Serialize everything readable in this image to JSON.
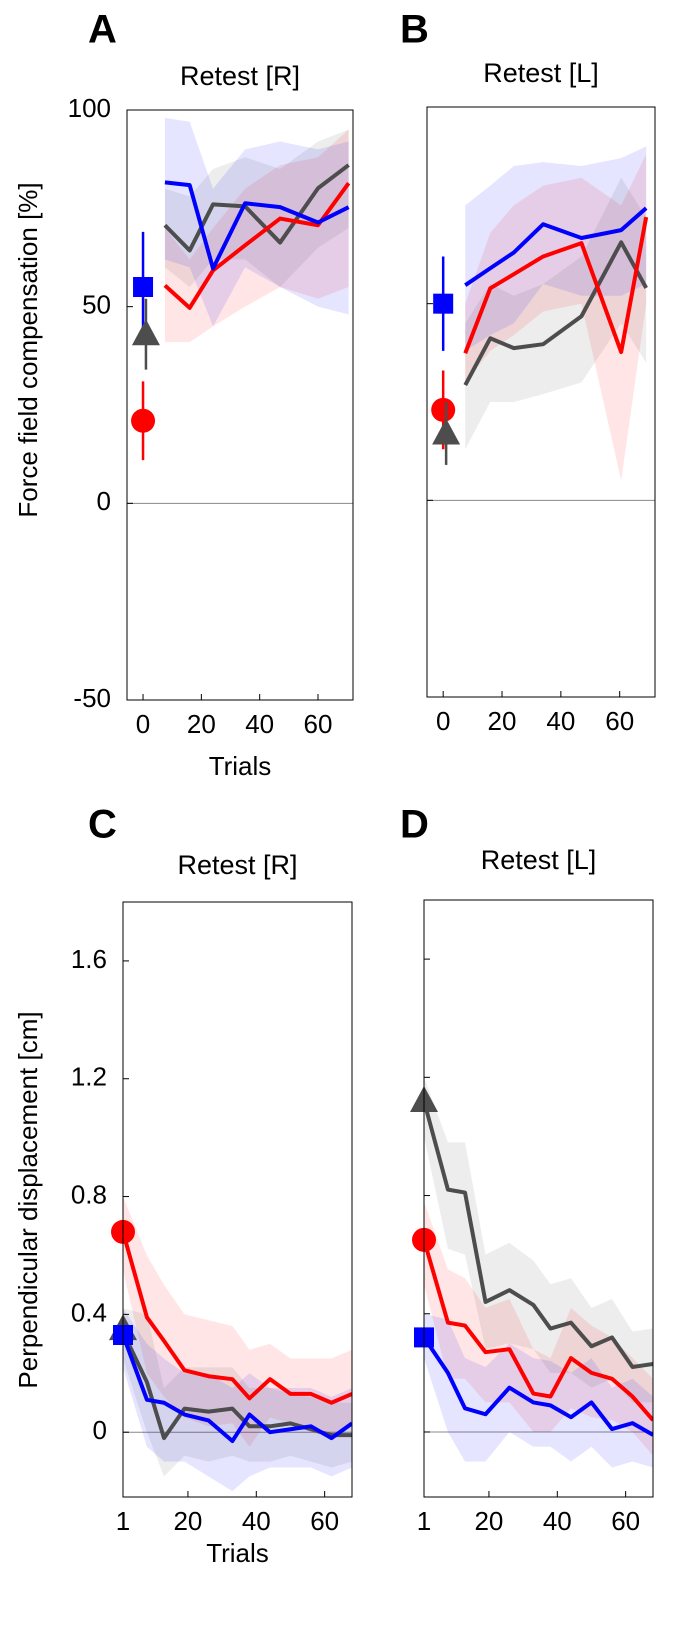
{
  "chart_data": [
    {
      "type": "line",
      "panel": "A",
      "title": "Retest [R]",
      "ylabel": "Force field compensation [%]",
      "xlabel": "Trials",
      "xlim": [
        -5.5,
        72
      ],
      "ylim": [
        -50,
        100
      ],
      "xticks": [
        0,
        20,
        40,
        60
      ],
      "yticks": [
        -50,
        0,
        50,
        100
      ],
      "ytick_labels": true,
      "zero_line": true,
      "series": [
        {
          "color": "#4d4d4d",
          "x": [
            7.5,
            16,
            24,
            35,
            47,
            60,
            70.5
          ],
          "values": [
            70.7,
            64.3,
            76,
            75.5,
            66.3,
            80.1,
            86
          ],
          "band_lower": [
            60,
            55,
            62,
            62,
            55,
            65,
            70
          ],
          "band_upper": [
            80,
            78,
            85,
            88,
            85,
            92,
            95
          ]
        },
        {
          "color": "#ff0000",
          "x": [
            7.5,
            16,
            24,
            35,
            47,
            60,
            70.5
          ],
          "values": [
            55.4,
            49.7,
            59.2,
            65.6,
            72.4,
            70.7,
            81.4
          ],
          "band_lower": [
            41,
            41,
            45,
            50,
            55,
            52,
            55
          ],
          "band_upper": [
            70,
            62,
            70,
            80,
            86,
            88,
            95
          ]
        },
        {
          "color": "#0000ff",
          "x": [
            7.5,
            16,
            24,
            35,
            47,
            60,
            70.5
          ],
          "values": [
            81.6,
            80.9,
            59.7,
            76.3,
            75.3,
            71.4,
            75.3
          ],
          "band_lower": [
            62,
            60,
            45,
            60,
            55,
            50,
            48
          ],
          "band_upper": [
            98,
            97,
            80,
            90,
            92,
            90,
            92
          ]
        }
      ],
      "markers": [
        {
          "color": "#0000ff",
          "shape": "square",
          "x": 0,
          "value": 55,
          "error": 14
        },
        {
          "color": "#4d4d4d",
          "shape": "triangle",
          "x": 1,
          "value": 43,
          "error": 9
        },
        {
          "color": "#ff0000",
          "shape": "circle",
          "x": 0,
          "value": 21,
          "error": 10
        }
      ]
    },
    {
      "type": "line",
      "panel": "B",
      "title": "Retest [L]",
      "xlim": [
        -5.5,
        72
      ],
      "ylim": [
        -50,
        100
      ],
      "xticks": [
        0,
        20,
        40,
        60
      ],
      "yticks": [
        -50,
        0,
        50,
        100
      ],
      "ytick_labels": false,
      "zero_line": true,
      "series": [
        {
          "color": "#4d4d4d",
          "x": [
            7.5,
            16,
            24,
            34,
            47,
            60.5,
            69
          ],
          "values": [
            29.3,
            41.2,
            38.7,
            39.7,
            46.8,
            65.6,
            54
          ],
          "band_lower": [
            13,
            25,
            25,
            27,
            30,
            45,
            35
          ],
          "band_upper": [
            45,
            55,
            52,
            55,
            62,
            82,
            72
          ]
        },
        {
          "color": "#ff0000",
          "x": [
            7.5,
            16,
            24,
            34,
            47,
            60.5,
            69
          ],
          "values": [
            37.4,
            53.9,
            57.5,
            62,
            65.4,
            37.7,
            72
          ],
          "band_lower": [
            30,
            38,
            42,
            48,
            50,
            5,
            50
          ],
          "band_upper": [
            50,
            68,
            75,
            80,
            82,
            75,
            88
          ]
        },
        {
          "color": "#0000ff",
          "x": [
            7.5,
            16,
            24,
            34,
            47,
            60.5,
            69
          ],
          "values": [
            54.7,
            59,
            63,
            70.2,
            66.7,
            68.7,
            74.3
          ],
          "band_lower": [
            38,
            42,
            45,
            55,
            52,
            52,
            55
          ],
          "band_upper": [
            75,
            80,
            85,
            86,
            85,
            87,
            90
          ]
        }
      ],
      "markers": [
        {
          "color": "#0000ff",
          "shape": "square",
          "x": 0,
          "value": 50,
          "error": 12
        },
        {
          "color": "#ff0000",
          "shape": "circle",
          "x": 0,
          "value": 23,
          "error": 10
        },
        {
          "color": "#4d4d4d",
          "shape": "triangle",
          "x": 1,
          "value": 17,
          "error": 8
        }
      ]
    },
    {
      "type": "line",
      "panel": "C",
      "title": "Retest [R]",
      "ylabel": "Perpendicular displacement [cm]",
      "xlabel": "Trials",
      "xlim": [
        1,
        68
      ],
      "ylim": [
        -0.22,
        1.8
      ],
      "xticks": [
        1,
        20,
        40,
        60
      ],
      "yticks": [
        0,
        0.4,
        0.8,
        1.2,
        1.6
      ],
      "ytick_labels": true,
      "zero_line": true,
      "series": [
        {
          "color": "#ff0000",
          "x": [
            1,
            8,
            13,
            19,
            26,
            33,
            38,
            44,
            50,
            56,
            62,
            68
          ],
          "values": [
            0.68,
            0.39,
            0.31,
            0.21,
            0.19,
            0.18,
            0.115,
            0.18,
            0.13,
            0.13,
            0.1,
            0.13
          ],
          "band_lower": [
            0.55,
            0.2,
            0.12,
            0.05,
            0.02,
            0.03,
            -0.05,
            0.05,
            0.03,
            0.0,
            -0.02,
            0.02
          ],
          "band_upper": [
            0.8,
            0.6,
            0.5,
            0.4,
            0.38,
            0.36,
            0.28,
            0.3,
            0.25,
            0.25,
            0.25,
            0.28
          ]
        },
        {
          "color": "#4d4d4d",
          "x": [
            1,
            8,
            13,
            19,
            26,
            33,
            38,
            44,
            50,
            56,
            62,
            68
          ],
          "values": [
            0.34,
            0.17,
            -0.02,
            0.08,
            0.07,
            0.08,
            0.02,
            0.02,
            0.03,
            0.01,
            -0.01,
            -0.01
          ],
          "band_lower": [
            0.25,
            0.0,
            -0.15,
            -0.08,
            -0.1,
            -0.08,
            -0.1,
            -0.1,
            -0.08,
            -0.1,
            -0.12,
            -0.1
          ],
          "band_upper": [
            0.42,
            0.4,
            0.15,
            0.22,
            0.22,
            0.22,
            0.15,
            0.15,
            0.13,
            0.12,
            0.1,
            0.1
          ]
        },
        {
          "color": "#0000ff",
          "x": [
            1,
            8,
            13,
            19,
            26,
            33,
            38,
            44,
            50,
            56,
            62,
            68
          ],
          "values": [
            0.33,
            0.11,
            0.1,
            0.06,
            0.04,
            -0.03,
            0.06,
            0.0,
            0.01,
            0.02,
            -0.02,
            0.03
          ],
          "band_lower": [
            0.22,
            -0.05,
            -0.1,
            -0.1,
            -0.15,
            -0.2,
            -0.15,
            -0.12,
            -0.12,
            -0.12,
            -0.15,
            -0.12
          ],
          "band_upper": [
            0.42,
            0.3,
            0.25,
            0.2,
            0.2,
            0.15,
            0.2,
            0.15,
            0.15,
            0.15,
            0.12,
            0.15
          ]
        }
      ],
      "markers": [
        {
          "color": "#ff0000",
          "shape": "circle",
          "x": 1,
          "value": 0.68
        },
        {
          "color": "#4d4d4d",
          "shape": "triangle",
          "x": 1,
          "value": 0.35
        },
        {
          "color": "#0000ff",
          "shape": "square",
          "x": 1,
          "value": 0.33
        }
      ]
    },
    {
      "type": "line",
      "panel": "D",
      "title": "Retest [L]",
      "xlim": [
        1,
        68
      ],
      "ylim": [
        -0.22,
        1.8
      ],
      "xticks": [
        1,
        20,
        40,
        60
      ],
      "yticks": [
        0,
        0.4,
        0.8,
        1.2,
        1.6
      ],
      "ytick_labels": false,
      "zero_line": true,
      "series": [
        {
          "color": "#4d4d4d",
          "x": [
            1,
            8,
            13,
            19,
            26,
            33,
            38,
            44,
            50,
            56,
            62,
            68
          ],
          "values": [
            1.12,
            0.82,
            0.81,
            0.44,
            0.48,
            0.43,
            0.35,
            0.37,
            0.29,
            0.32,
            0.22,
            0.23
          ],
          "band_lower": [
            1.0,
            0.62,
            0.6,
            0.28,
            0.3,
            0.28,
            0.2,
            0.2,
            0.15,
            0.18,
            0.1,
            0.1
          ],
          "band_upper": [
            1.2,
            0.98,
            0.98,
            0.6,
            0.64,
            0.58,
            0.5,
            0.52,
            0.42,
            0.45,
            0.34,
            0.35
          ]
        },
        {
          "color": "#ff0000",
          "x": [
            1,
            8,
            13,
            19,
            26,
            33,
            38,
            44,
            50,
            56,
            62,
            68
          ],
          "values": [
            0.65,
            0.37,
            0.36,
            0.27,
            0.28,
            0.13,
            0.12,
            0.25,
            0.2,
            0.18,
            0.12,
            0.04
          ],
          "band_lower": [
            0.5,
            0.18,
            0.18,
            0.1,
            0.1,
            0.0,
            0.0,
            0.08,
            0.05,
            0.04,
            0.0,
            -0.08
          ],
          "band_upper": [
            0.78,
            0.55,
            0.52,
            0.42,
            0.45,
            0.28,
            0.25,
            0.42,
            0.36,
            0.32,
            0.25,
            0.18
          ]
        },
        {
          "color": "#0000ff",
          "x": [
            1,
            8,
            13,
            19,
            26,
            33,
            38,
            44,
            50,
            56,
            62,
            68
          ],
          "values": [
            0.32,
            0.2,
            0.08,
            0.06,
            0.15,
            0.1,
            0.09,
            0.05,
            0.1,
            0.01,
            0.03,
            -0.01
          ],
          "band_lower": [
            0.25,
            0.0,
            -0.1,
            -0.1,
            0.0,
            -0.05,
            -0.05,
            -0.1,
            -0.05,
            -0.12,
            -0.1,
            -0.12
          ],
          "band_upper": [
            0.4,
            0.38,
            0.25,
            0.22,
            0.3,
            0.25,
            0.24,
            0.2,
            0.25,
            0.15,
            0.18,
            0.12
          ]
        }
      ],
      "markers": [
        {
          "color": "#4d4d4d",
          "shape": "triangle",
          "x": 1,
          "value": 1.12
        },
        {
          "color": "#ff0000",
          "shape": "circle",
          "x": 1,
          "value": 0.65
        },
        {
          "color": "#0000ff",
          "shape": "square",
          "x": 1,
          "value": 0.32
        }
      ]
    }
  ]
}
